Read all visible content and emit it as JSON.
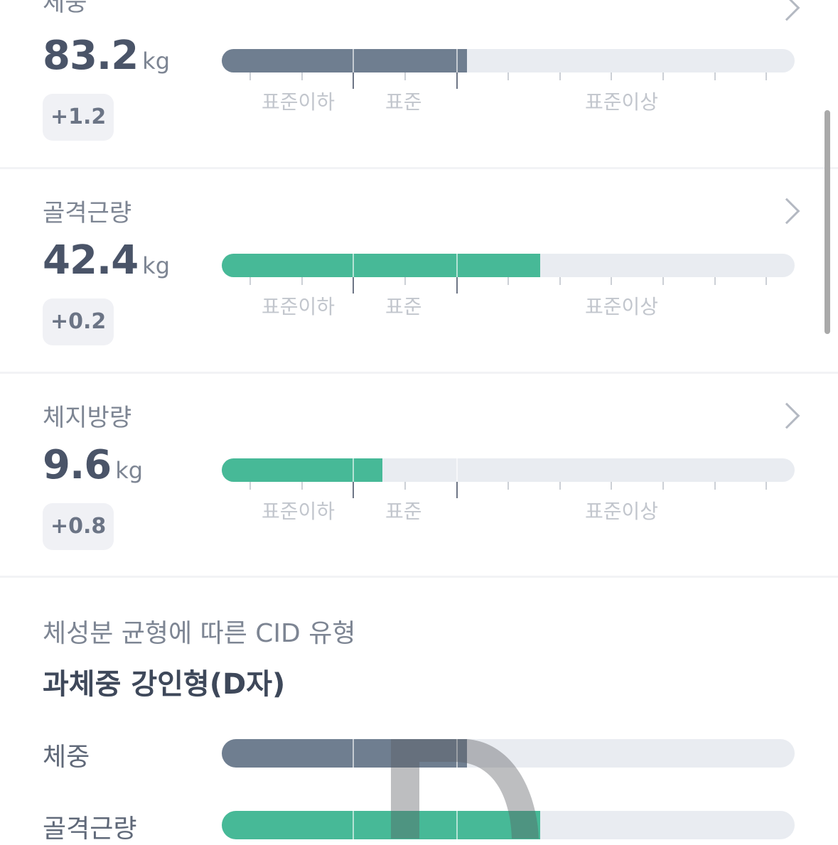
{
  "metrics": [
    {
      "title": "체중",
      "value": "83.2",
      "unit": "kg",
      "change": "+1.2",
      "fill_percent": 42.8,
      "color": "#6f7e90"
    },
    {
      "title": "골격근량",
      "value": "42.4",
      "unit": "kg",
      "change": "+0.2",
      "fill_percent": 55.6,
      "color": "#47b997"
    },
    {
      "title": "체지방량",
      "value": "9.6",
      "unit": "kg",
      "change": "+0.8",
      "fill_percent": 28.1,
      "color": "#47b997"
    }
  ],
  "scale_labels": [
    "표준이하",
    "표준",
    "표준이상"
  ],
  "cid": {
    "heading": "체성분 균형에 따른 CID 유형",
    "type": "과체중 강인형(D자)",
    "shape_letter": "D",
    "rows": [
      {
        "label": "체중",
        "fill_percent": 42.8,
        "color": "#6f7e90"
      },
      {
        "label": "골격근량",
        "fill_percent": 55.6,
        "color": "#47b997"
      }
    ]
  }
}
